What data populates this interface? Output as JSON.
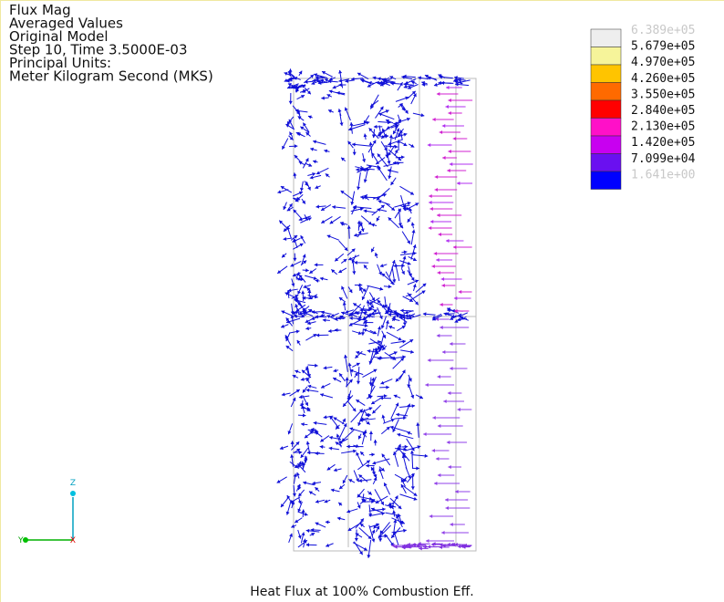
{
  "header": {
    "lines": [
      "Flux Mag",
      "Averaged Values",
      "Original Model",
      "Step  10, Time 3.5000E-03",
      "Principal Units:",
      "Meter Kilogram Second (MKS)"
    ]
  },
  "legend": {
    "labels": [
      "6.389e+05",
      "5.679e+05",
      "4.970e+05",
      "4.260e+05",
      "3.550e+05",
      "2.840e+05",
      "2.130e+05",
      "1.420e+05",
      "7.099e+04",
      "1.641e+00"
    ],
    "colors": [
      "#eeeeee",
      "#f6f49a",
      "#ffc400",
      "#ff6a00",
      "#ff0000",
      "#ff10c8",
      "#c800f0",
      "#6a10f0",
      "#0000ff"
    ]
  },
  "triad": {
    "z": "Z",
    "y": "Y",
    "x": "X"
  },
  "caption": "Heat Flux at 100% Combustion Eff."
}
